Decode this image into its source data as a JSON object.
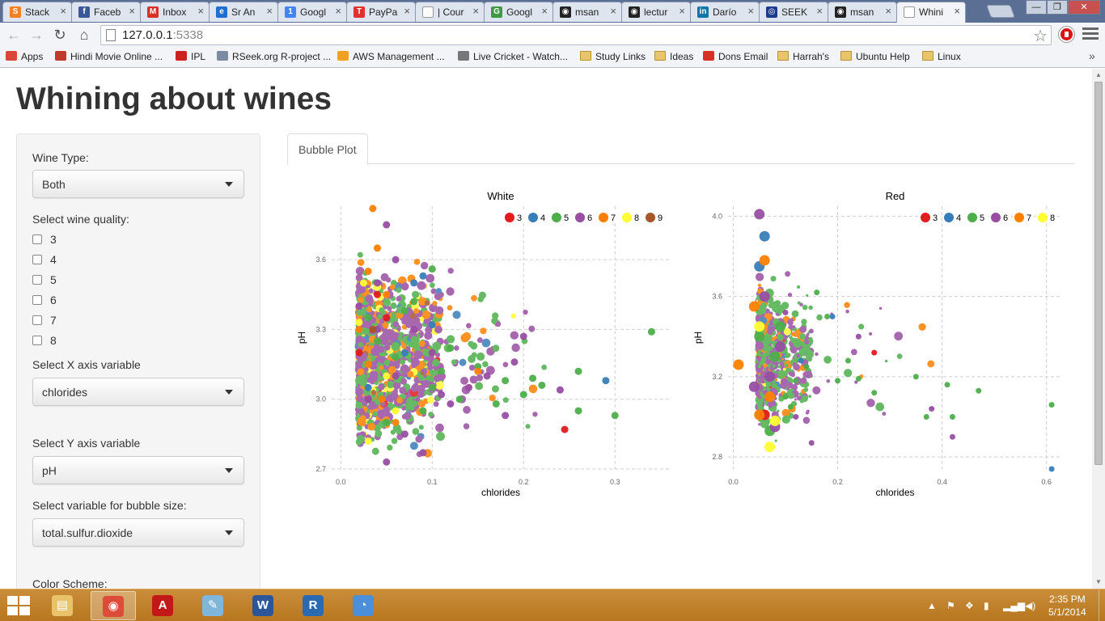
{
  "browser": {
    "tabs": [
      {
        "title": "Stack",
        "icon": "stackoverflow-icon",
        "color": "#f48024",
        "glyph": "S"
      },
      {
        "title": "Faceb",
        "icon": "facebook-icon",
        "color": "#3b5998",
        "glyph": "f"
      },
      {
        "title": "Inbox",
        "icon": "gmail-icon",
        "color": "#d93025",
        "glyph": "M"
      },
      {
        "title": "Sr An",
        "icon": "ie-icon",
        "color": "#1f6fd1",
        "glyph": "e"
      },
      {
        "title": "Googl",
        "icon": "google-calendar-icon",
        "color": "#4285f4",
        "glyph": "1"
      },
      {
        "title": "PayPa",
        "icon": "tnw-icon",
        "color": "#e03030",
        "glyph": "T"
      },
      {
        "title": "| Cour",
        "icon": "page-icon",
        "color": "#ffffff",
        "glyph": ""
      },
      {
        "title": "Googl",
        "icon": "google-maps-icon",
        "color": "#3d9a43",
        "glyph": "G"
      },
      {
        "title": "msan",
        "icon": "github-icon",
        "color": "#222222",
        "glyph": "◉"
      },
      {
        "title": "lectur",
        "icon": "github-icon",
        "color": "#222222",
        "glyph": "◉"
      },
      {
        "title": "Darío",
        "icon": "linkedin-icon",
        "color": "#0e76a8",
        "glyph": "in"
      },
      {
        "title": "SEEK",
        "icon": "seek-icon",
        "color": "#1c3c8c",
        "glyph": "◎"
      },
      {
        "title": "msan",
        "icon": "github-icon",
        "color": "#222222",
        "glyph": "◉"
      },
      {
        "title": "Whini",
        "icon": "page-icon",
        "color": "#ffffff",
        "glyph": "",
        "active": true
      }
    ],
    "url_host": "127.0.0.1",
    "url_port": ":5338",
    "bookmarks": [
      {
        "label": "Apps",
        "icon": "apps-icon",
        "color": "#d9463a"
      },
      {
        "label": "Hindi Movie Online ...",
        "icon": "site-icon",
        "color": "#c0392b"
      },
      {
        "label": "IPL",
        "icon": "site-icon",
        "color": "#cc2222"
      },
      {
        "label": "RSeek.org R-project ...",
        "icon": "site-icon",
        "color": "#7a8aa0"
      },
      {
        "label": "AWS Management ...",
        "icon": "aws-icon",
        "color": "#f0a020"
      },
      {
        "label": "Live Cricket - Watch...",
        "icon": "site-icon",
        "color": "#777777"
      },
      {
        "label": "Study Links",
        "icon": "folder-icon",
        "color": "folder"
      },
      {
        "label": "Ideas",
        "icon": "folder-icon",
        "color": "folder"
      },
      {
        "label": "Dons Email",
        "icon": "gmail-icon",
        "color": "#d93025"
      },
      {
        "label": "Harrah's",
        "icon": "folder-icon",
        "color": "folder"
      },
      {
        "label": "Ubuntu Help",
        "icon": "folder-icon",
        "color": "folder"
      },
      {
        "label": "Linux",
        "icon": "folder-icon",
        "color": "folder"
      }
    ]
  },
  "app": {
    "title": "Whining about wines",
    "controls": {
      "wine_type_label": "Wine Type:",
      "wine_type_value": "Both",
      "quality_label": "Select wine quality:",
      "quality_options": [
        "3",
        "4",
        "5",
        "6",
        "7",
        "8"
      ],
      "x_label": "Select X axis variable",
      "x_value": "chlorides",
      "y_label": "Select Y axis variable",
      "y_value": "pH",
      "size_label": "Select variable for bubble size:",
      "size_value": "total.sulfur.dioxide",
      "color_label": "Color Scheme:"
    },
    "tab_label": "Bubble Plot"
  },
  "chart_data": [
    {
      "type": "scatter",
      "title": "White",
      "xlabel": "chlorides",
      "ylabel": "pH",
      "xlim": [
        -0.01,
        0.36
      ],
      "ylim": [
        2.7,
        3.83
      ],
      "xticks": [
        0.0,
        0.1,
        0.2,
        0.3
      ],
      "yticks": [
        2.7,
        3.0,
        3.3,
        3.6
      ],
      "legend": [
        "3",
        "4",
        "5",
        "6",
        "7",
        "8",
        "9"
      ],
      "grid": true,
      "series": [
        {
          "name": "3",
          "points": [
            [
              0.04,
              3.45
            ],
            [
              0.245,
              2.87
            ],
            [
              0.05,
              3.35
            ],
            [
              0.02,
              3.2
            ]
          ]
        },
        {
          "name": "4",
          "points": [
            [
              0.29,
              3.08
            ],
            [
              0.1,
              3.32
            ],
            [
              0.08,
              3.5
            ],
            [
              0.09,
              3.53
            ],
            [
              0.07,
              3.2
            ],
            [
              0.03,
              3.05
            ]
          ]
        },
        {
          "name": "5",
          "points": [
            [
              0.34,
              3.29
            ],
            [
              0.3,
              2.93
            ],
            [
              0.26,
              2.95
            ],
            [
              0.26,
              3.12
            ],
            [
              0.21,
              3.09
            ],
            [
              0.2,
              3.02
            ],
            [
              0.18,
              3.08
            ],
            [
              0.15,
              3.14
            ],
            [
              0.12,
              3.22
            ],
            [
              0.1,
              3.56
            ],
            [
              0.08,
              3.42
            ],
            [
              0.06,
              3.18
            ],
            [
              0.05,
              2.9
            ],
            [
              0.1,
              3.05
            ],
            [
              0.13,
              3.0
            ],
            [
              0.04,
              3.25
            ],
            [
              0.07,
              3.38
            ],
            [
              0.03,
              3.35
            ],
            [
              0.09,
              2.95
            ],
            [
              0.11,
              3.12
            ],
            [
              0.17,
              2.98
            ],
            [
              0.22,
              3.06
            ]
          ]
        },
        {
          "name": "6",
          "points": [
            [
              0.2,
              3.27
            ],
            [
              0.19,
              3.16
            ],
            [
              0.24,
              3.04
            ],
            [
              0.16,
              3.1
            ],
            [
              0.12,
              2.98
            ],
            [
              0.1,
              3.2
            ],
            [
              0.08,
              3.3
            ],
            [
              0.06,
              3.6
            ],
            [
              0.05,
              3.75
            ],
            [
              0.04,
              3.5
            ],
            [
              0.03,
              3.0
            ],
            [
              0.07,
              2.85
            ],
            [
              0.05,
              2.73
            ],
            [
              0.09,
              2.77
            ],
            [
              0.14,
              3.05
            ],
            [
              0.18,
              2.93
            ],
            [
              0.02,
              3.4
            ],
            [
              0.06,
              3.1
            ],
            [
              0.04,
              3.3
            ],
            [
              0.11,
              3.02
            ]
          ]
        },
        {
          "name": "7",
          "points": [
            [
              0.035,
              3.82
            ],
            [
              0.03,
              3.55
            ],
            [
              0.02,
              3.3
            ],
            [
              0.045,
              3.0
            ],
            [
              0.05,
              3.45
            ],
            [
              0.03,
              3.15
            ],
            [
              0.06,
              2.9
            ],
            [
              0.15,
              3.12
            ],
            [
              0.04,
              3.65
            ]
          ]
        },
        {
          "name": "8",
          "points": [
            [
              0.02,
              3.33
            ],
            [
              0.03,
              2.82
            ],
            [
              0.06,
              2.95
            ],
            [
              0.025,
              3.5
            ],
            [
              0.05,
              3.1
            ]
          ]
        },
        {
          "name": "9",
          "points": [
            [
              0.035,
              3.3
            ]
          ]
        }
      ]
    },
    {
      "type": "scatter",
      "title": "Red",
      "xlabel": "chlorides",
      "ylabel": "pH",
      "xlim": [
        -0.01,
        0.63
      ],
      "ylim": [
        2.74,
        4.05
      ],
      "xticks": [
        0.0,
        0.2,
        0.4,
        0.6
      ],
      "yticks": [
        2.8,
        3.2,
        3.6,
        4.0
      ],
      "legend": [
        "3",
        "4",
        "5",
        "6",
        "7",
        "8"
      ],
      "grid": true,
      "series": [
        {
          "name": "3",
          "points": [
            [
              0.27,
              3.32
            ],
            [
              0.06,
              3.01
            ]
          ]
        },
        {
          "name": "4",
          "points": [
            [
              0.61,
              2.74
            ],
            [
              0.05,
              3.75
            ],
            [
              0.06,
              3.9
            ],
            [
              0.13,
              3.28
            ],
            [
              0.19,
              3.5
            ]
          ]
        },
        {
          "name": "5",
          "points": [
            [
              0.61,
              3.06
            ],
            [
              0.47,
              3.13
            ],
            [
              0.42,
              3.0
            ],
            [
              0.41,
              3.16
            ],
            [
              0.37,
              3.0
            ],
            [
              0.35,
              3.2
            ],
            [
              0.27,
              3.12
            ],
            [
              0.24,
              3.19
            ],
            [
              0.22,
              3.28
            ],
            [
              0.18,
              3.5
            ],
            [
              0.16,
              3.62
            ],
            [
              0.12,
              3.18
            ],
            [
              0.1,
              3.1
            ],
            [
              0.08,
              3.3
            ],
            [
              0.07,
              2.93
            ],
            [
              0.09,
              3.45
            ],
            [
              0.11,
              3.05
            ],
            [
              0.2,
              3.18
            ],
            [
              0.14,
              3.25
            ],
            [
              0.05,
              3.4
            ]
          ]
        },
        {
          "name": "6",
          "points": [
            [
              0.42,
              2.9
            ],
            [
              0.38,
              3.04
            ],
            [
              0.24,
              3.4
            ],
            [
              0.15,
              2.87
            ],
            [
              0.05,
              4.01
            ],
            [
              0.07,
              3.2
            ],
            [
              0.09,
              3.35
            ],
            [
              0.06,
              3.6
            ],
            [
              0.12,
              3.0
            ],
            [
              0.1,
              3.52
            ],
            [
              0.04,
              3.15
            ],
            [
              0.08,
              2.95
            ]
          ]
        },
        {
          "name": "7",
          "points": [
            [
              0.01,
              3.26
            ],
            [
              0.05,
              3.01
            ],
            [
              0.04,
              3.55
            ],
            [
              0.06,
              3.78
            ],
            [
              0.07,
              3.1
            ]
          ]
        },
        {
          "name": "8",
          "points": [
            [
              0.08,
              2.98
            ],
            [
              0.05,
              3.45
            ],
            [
              0.07,
              2.85
            ]
          ]
        }
      ]
    }
  ],
  "colors": {
    "3": "#e41a1c",
    "4": "#377eb8",
    "5": "#4daf4a",
    "6": "#984ea3",
    "7": "#ff7f00",
    "8": "#ffff33",
    "9": "#a65628"
  },
  "taskbar": {
    "apps": [
      {
        "name": "file-explorer-icon",
        "color": "#e8c36a",
        "glyph": "▤",
        "active": false
      },
      {
        "name": "chrome-icon",
        "color": "#dd4b39",
        "glyph": "◉",
        "active": true
      },
      {
        "name": "acrobat-icon",
        "color": "#c21818",
        "glyph": "A",
        "active": false
      },
      {
        "name": "notepad-icon",
        "color": "#7fb6d9",
        "glyph": "✎",
        "active": false
      },
      {
        "name": "word-icon",
        "color": "#2b579a",
        "glyph": "W",
        "active": false
      },
      {
        "name": "r-icon",
        "color": "#2a6ab3",
        "glyph": "R",
        "active": false
      },
      {
        "name": "app-icon",
        "color": "#4a8fd8",
        "glyph": "◔",
        "active": false
      }
    ],
    "time": "2:35 PM",
    "date": "5/1/2014"
  }
}
